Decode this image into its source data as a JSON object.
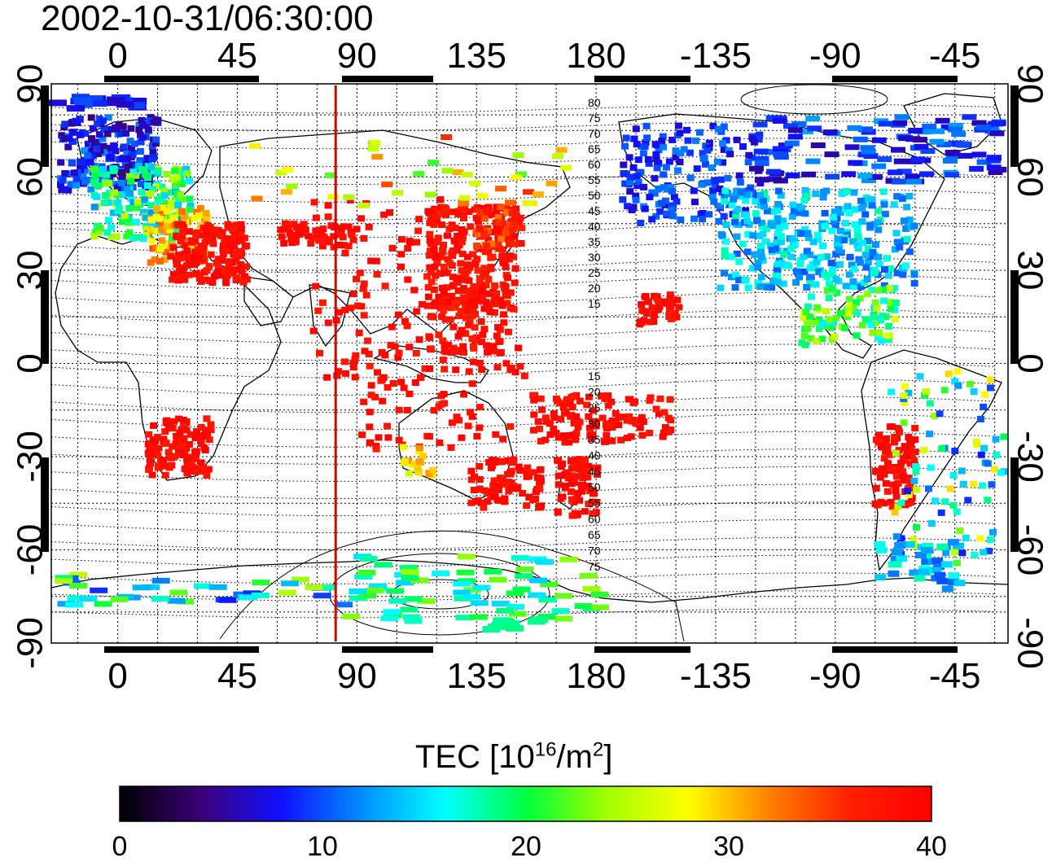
{
  "timestamp": "2002-10-31/06:30:00",
  "map": {
    "x_ticks_top": [
      "0",
      "45",
      "90",
      "135",
      "180",
      "-135",
      "-90",
      "-45"
    ],
    "x_ticks_bottom": [
      "0",
      "45",
      "90",
      "135",
      "180",
      "-135",
      "-90",
      "-45"
    ],
    "y_ticks_left": [
      "90",
      "60",
      "30",
      "0",
      "-30",
      "-60",
      "-90"
    ],
    "y_ticks_right": [
      "90",
      "60",
      "30",
      "0",
      "-30",
      "-60",
      "-90"
    ],
    "marker_line_longitude": 82,
    "contour_labels_north": [
      "80",
      "75",
      "70",
      "65",
      "60",
      "55",
      "50",
      "45",
      "40",
      "35",
      "30",
      "25",
      "20",
      "15"
    ],
    "contour_labels_south": [
      "15",
      "20",
      "25",
      "30",
      "35",
      "40",
      "45",
      "50",
      "55",
      "60",
      "65",
      "70",
      "75"
    ],
    "colors": {
      "marker_line": "#e00000",
      "high_tec": "#ff1a1a"
    }
  },
  "colorbar": {
    "title_prefix": "TEC  [10",
    "title_sup1": "16",
    "title_mid": "/m",
    "title_sup2": "2",
    "title_suffix": "]",
    "ticks": [
      "0",
      "10",
      "20",
      "30",
      "40"
    ],
    "range": [
      0,
      40
    ],
    "colormap_stops": [
      "#000000",
      "#3a0078",
      "#1010ff",
      "#0090ff",
      "#00ffff",
      "#00ff40",
      "#a0ff00",
      "#ffff00",
      "#ff8000",
      "#ff2000",
      "#ff0000"
    ]
  }
}
